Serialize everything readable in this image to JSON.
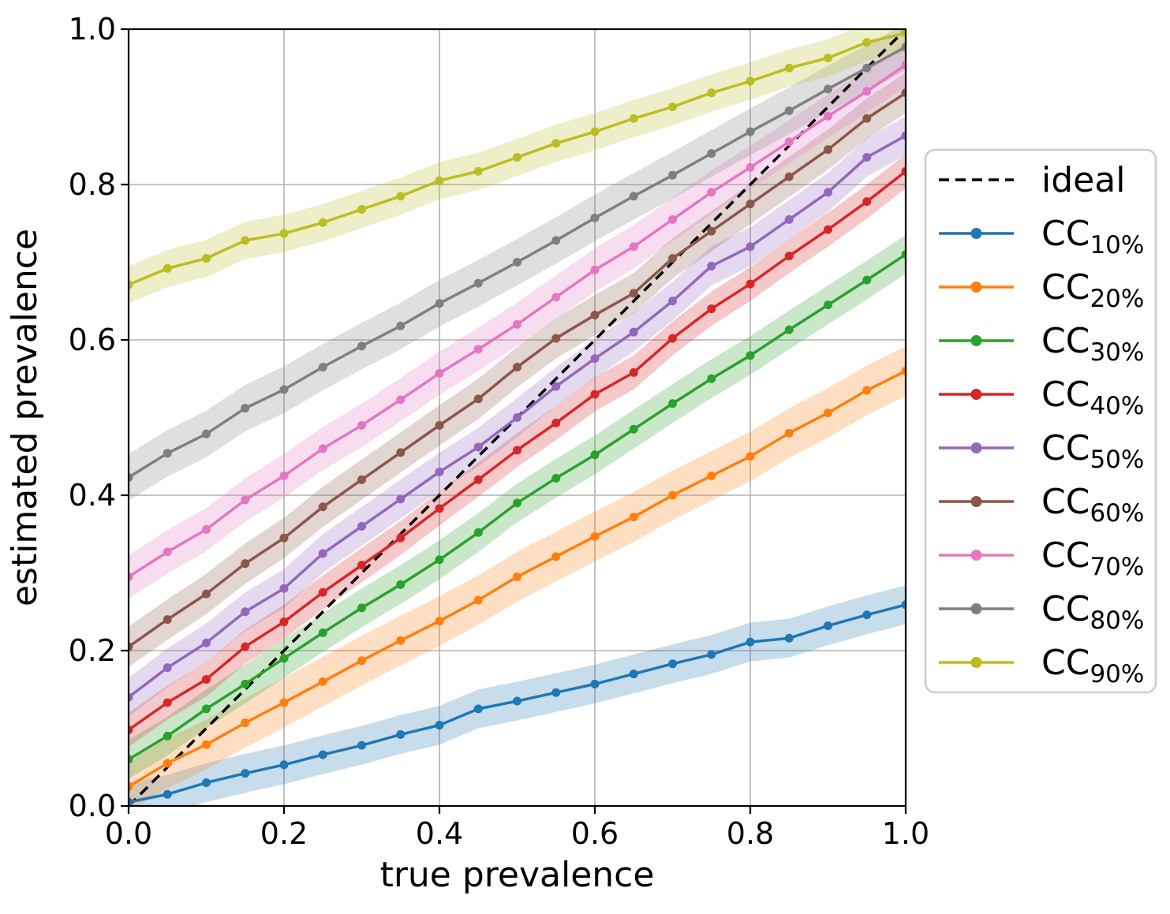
{
  "chart_data": {
    "type": "line",
    "title": "",
    "xlabel": "true prevalence",
    "ylabel": "estimated prevalence",
    "xlim": [
      0.0,
      1.0
    ],
    "ylim": [
      0.0,
      1.0
    ],
    "x_ticks": [
      "0.0",
      "0.2",
      "0.4",
      "0.6",
      "0.8",
      "1.0"
    ],
    "y_ticks": [
      "0.0",
      "0.2",
      "0.4",
      "0.6",
      "0.8",
      "1.0"
    ],
    "grid": true,
    "legend_position": "right",
    "style": {
      "grid_color": "#b2b2b2",
      "spine_color": "#000000",
      "band_opacity": 0.25,
      "legend_border_color": "#cccccc",
      "legend_fill": "#ffffff"
    },
    "reference_line": {
      "label": "ideal",
      "style": "dashed",
      "color": "#000000",
      "from": [
        0.0,
        0.0
      ],
      "to": [
        1.0,
        1.0
      ]
    },
    "x": [
      0.0,
      0.05,
      0.1,
      0.15,
      0.2,
      0.25,
      0.3,
      0.35,
      0.4,
      0.45,
      0.5,
      0.55,
      0.6,
      0.65,
      0.7,
      0.75,
      0.8,
      0.85,
      0.9,
      0.95,
      1.0
    ],
    "series": [
      {
        "name": "CC_10%",
        "label_main": "CC",
        "label_sub": "10%",
        "color": "#1f77b4",
        "band": 0.025,
        "values": [
          0.005,
          0.015,
          0.03,
          0.042,
          0.053,
          0.066,
          0.078,
          0.092,
          0.104,
          0.125,
          0.135,
          0.146,
          0.157,
          0.17,
          0.183,
          0.195,
          0.211,
          0.216,
          0.232,
          0.246,
          0.259
        ]
      },
      {
        "name": "CC_20%",
        "label_main": "CC",
        "label_sub": "20%",
        "color": "#ff7f0e",
        "band": 0.032,
        "values": [
          0.025,
          0.055,
          0.079,
          0.107,
          0.133,
          0.16,
          0.187,
          0.213,
          0.238,
          0.265,
          0.295,
          0.321,
          0.347,
          0.372,
          0.4,
          0.425,
          0.45,
          0.48,
          0.506,
          0.535,
          0.56
        ]
      },
      {
        "name": "CC_30%",
        "label_main": "CC",
        "label_sub": "30%",
        "color": "#2ca02c",
        "band": 0.025,
        "values": [
          0.06,
          0.09,
          0.125,
          0.157,
          0.19,
          0.223,
          0.255,
          0.285,
          0.317,
          0.352,
          0.39,
          0.422,
          0.452,
          0.485,
          0.518,
          0.55,
          0.58,
          0.613,
          0.645,
          0.677,
          0.71
        ]
      },
      {
        "name": "CC_40%",
        "label_main": "CC",
        "label_sub": "40%",
        "color": "#d62728",
        "band": 0.022,
        "values": [
          0.098,
          0.133,
          0.163,
          0.205,
          0.237,
          0.275,
          0.31,
          0.345,
          0.383,
          0.42,
          0.458,
          0.493,
          0.53,
          0.558,
          0.602,
          0.64,
          0.672,
          0.708,
          0.742,
          0.778,
          0.817
        ]
      },
      {
        "name": "CC_50%",
        "label_main": "CC",
        "label_sub": "50%",
        "color": "#9467bd",
        "band": 0.025,
        "values": [
          0.14,
          0.178,
          0.21,
          0.25,
          0.28,
          0.325,
          0.36,
          0.395,
          0.43,
          0.462,
          0.5,
          0.54,
          0.576,
          0.61,
          0.65,
          0.695,
          0.72,
          0.755,
          0.79,
          0.835,
          0.863
        ]
      },
      {
        "name": "CC_60%",
        "label_main": "CC",
        "label_sub": "60%",
        "color": "#8c564b",
        "band": 0.026,
        "values": [
          0.205,
          0.24,
          0.273,
          0.312,
          0.345,
          0.385,
          0.42,
          0.455,
          0.49,
          0.524,
          0.565,
          0.602,
          0.632,
          0.66,
          0.705,
          0.74,
          0.775,
          0.81,
          0.845,
          0.885,
          0.918
        ]
      },
      {
        "name": "CC_70%",
        "label_main": "CC",
        "label_sub": "70%",
        "color": "#e377c2",
        "band": 0.028,
        "values": [
          0.295,
          0.327,
          0.356,
          0.394,
          0.425,
          0.46,
          0.49,
          0.523,
          0.557,
          0.588,
          0.62,
          0.655,
          0.69,
          0.72,
          0.755,
          0.79,
          0.822,
          0.855,
          0.888,
          0.92,
          0.954
        ]
      },
      {
        "name": "CC_80%",
        "label_main": "CC",
        "label_sub": "80%",
        "color": "#7f7f7f",
        "band": 0.03,
        "values": [
          0.423,
          0.454,
          0.479,
          0.512,
          0.536,
          0.565,
          0.592,
          0.618,
          0.647,
          0.673,
          0.7,
          0.728,
          0.757,
          0.785,
          0.812,
          0.84,
          0.868,
          0.895,
          0.923,
          0.95,
          0.977
        ]
      },
      {
        "name": "CC_90%",
        "label_main": "CC",
        "label_sub": "90%",
        "color": "#bcbd22",
        "band": 0.024,
        "values": [
          0.671,
          0.692,
          0.705,
          0.728,
          0.737,
          0.751,
          0.768,
          0.785,
          0.805,
          0.817,
          0.835,
          0.853,
          0.868,
          0.885,
          0.9,
          0.918,
          0.933,
          0.95,
          0.963,
          0.983,
          0.995
        ]
      }
    ]
  }
}
